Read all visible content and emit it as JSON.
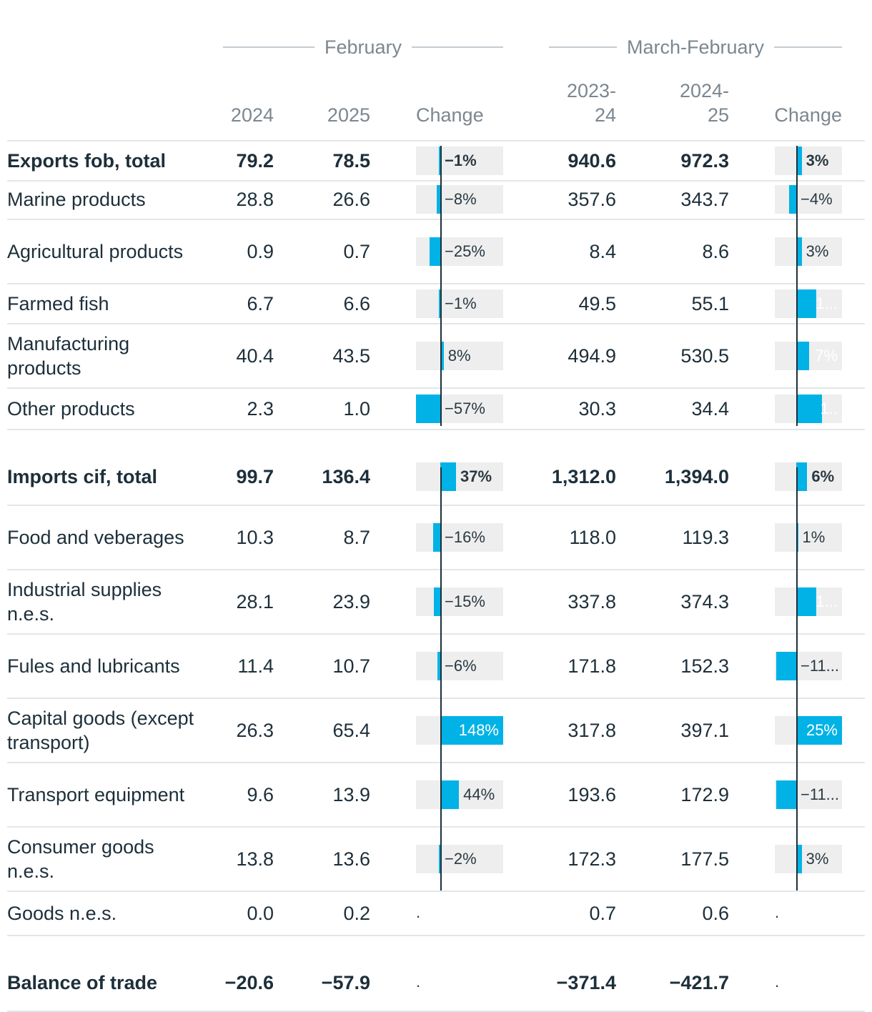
{
  "headers": {
    "group1": "February",
    "group2": "March-February",
    "col1": "2024",
    "col2": "2025",
    "col3": "Change",
    "col4_line1": "2023-",
    "col4_line2": "24",
    "col5_line1": "2024-",
    "col5_line2": "25",
    "col6": "Change"
  },
  "colors": {
    "bar": "#00b2e6",
    "track": "#eeeeee",
    "axis": "#1d2f3a"
  },
  "chart_data": {
    "type": "table",
    "change_scale_pct": {
      "february": [
        -57,
        148
      ],
      "march_february": [
        -11,
        25
      ]
    },
    "rows": [
      {
        "label": "Exports fob, total",
        "bold": true,
        "v2024": "79.2",
        "v2025": "78.5",
        "feb_change": -1,
        "feb_label": "−1%",
        "v2324": "940.6",
        "v2425": "972.3",
        "mf_change": 3,
        "mf_label": "3%"
      },
      {
        "label": "Marine products",
        "v2024": "28.8",
        "v2025": "26.6",
        "feb_change": -8,
        "feb_label": "−8%",
        "v2324": "357.6",
        "v2425": "343.7",
        "mf_change": -4,
        "mf_label": "−4%"
      },
      {
        "label": "Agricultural products",
        "v2024": "0.9",
        "v2025": "0.7",
        "feb_change": -25,
        "feb_label": "−25%",
        "v2324": "8.4",
        "v2425": "8.6",
        "mf_change": 3,
        "mf_label": "3%"
      },
      {
        "label": "Farmed fish",
        "v2024": "6.7",
        "v2025": "6.6",
        "feb_change": -1,
        "feb_label": "−1%",
        "v2324": "49.5",
        "v2425": "55.1",
        "mf_change": 11,
        "mf_label": "1..."
      },
      {
        "label": "Manufacturing products",
        "v2024": "40.4",
        "v2025": "43.5",
        "feb_change": 8,
        "feb_label": "8%",
        "v2324": "494.9",
        "v2425": "530.5",
        "mf_change": 7,
        "mf_label": "7%"
      },
      {
        "label": "Other products",
        "v2024": "2.3",
        "v2025": "1.0",
        "feb_change": -57,
        "feb_label": "−57%",
        "v2324": "30.3",
        "v2425": "34.4",
        "mf_change": 14,
        "mf_label": "1.."
      },
      {
        "label": "Imports cif, total",
        "bold": true,
        "gap": true,
        "v2024": "99.7",
        "v2025": "136.4",
        "feb_change": 37,
        "feb_label": "37%",
        "v2324": "1,312.0",
        "v2425": "1,394.0",
        "mf_change": 6,
        "mf_label": "6%"
      },
      {
        "label": "Food and veberages",
        "v2024": "10.3",
        "v2025": "8.7",
        "feb_change": -16,
        "feb_label": "−16%",
        "v2324": "118.0",
        "v2425": "119.3",
        "mf_change": 1,
        "mf_label": "1%"
      },
      {
        "label": "Industrial supplies n.e.s.",
        "v2024": "28.1",
        "v2025": "23.9",
        "feb_change": -15,
        "feb_label": "−15%",
        "v2324": "337.8",
        "v2425": "374.3",
        "mf_change": 11,
        "mf_label": "1..."
      },
      {
        "label": "Fules and lubricants",
        "v2024": "11.4",
        "v2025": "10.7",
        "feb_change": -6,
        "feb_label": "−6%",
        "v2324": "171.8",
        "v2425": "152.3",
        "mf_change": -11,
        "mf_label": "−11..."
      },
      {
        "label": "Capital goods (except transport)",
        "v2024": "26.3",
        "v2025": "65.4",
        "feb_change": 148,
        "feb_label": "148%",
        "v2324": "317.8",
        "v2425": "397.1",
        "mf_change": 25,
        "mf_label": "25%"
      },
      {
        "label": "Transport equipment",
        "v2024": "9.6",
        "v2025": "13.9",
        "feb_change": 44,
        "feb_label": "44%",
        "v2324": "193.6",
        "v2425": "172.9",
        "mf_change": -11,
        "mf_label": "−11..."
      },
      {
        "label": "Consumer goods n.e.s.",
        "v2024": "13.8",
        "v2025": "13.6",
        "feb_change": -2,
        "feb_label": "−2%",
        "v2324": "172.3",
        "v2425": "177.5",
        "mf_change": 3,
        "mf_label": "3%"
      },
      {
        "label": "Goods n.e.s.",
        "v2024": "0.0",
        "v2025": "0.2",
        "feb_change": null,
        "feb_label": ".",
        "v2324": "0.7",
        "v2425": "0.6",
        "mf_change": null,
        "mf_label": "."
      },
      {
        "label": "Balance of trade",
        "bold": true,
        "gap": true,
        "v2024": "−20.6",
        "v2025": "−57.9",
        "feb_change": null,
        "feb_label": ".",
        "v2324": "−371.4",
        "v2425": "−421.7",
        "mf_change": null,
        "mf_label": "."
      }
    ]
  }
}
